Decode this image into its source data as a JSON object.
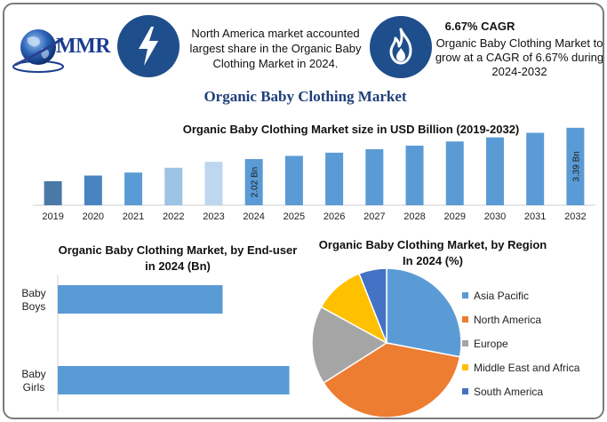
{
  "header": {
    "logo_text": "MMR",
    "fact_north_america": "North America market accounted largest share in the Organic Baby Clothing Market in 2024.",
    "cagr_title": "6.67% CAGR",
    "cagr_text": "Organic Baby Clothing Market to grow at a CAGR of 6.67% during 2024-2032",
    "icons": [
      "globe-logo-icon",
      "lightning-bolt-icon",
      "flame-icon"
    ],
    "accent_color": "#1f4e8c"
  },
  "main_title": "Organic Baby Clothing Market",
  "chart_data": [
    {
      "type": "bar",
      "title": "Organic Baby Clothing Market size in USD Billion (2019-2032)",
      "categories": [
        "2019",
        "2020",
        "2021",
        "2022",
        "2023",
        "2024",
        "2025",
        "2026",
        "2027",
        "2028",
        "2029",
        "2030",
        "2031",
        "2032"
      ],
      "values": [
        1.05,
        1.3,
        1.43,
        1.64,
        1.9,
        2.02,
        2.16,
        2.3,
        2.45,
        2.61,
        2.79,
        2.97,
        3.17,
        3.39
      ],
      "bar_colors": [
        "#4a79a8",
        "#4a84c0",
        "#5b9bd5",
        "#9dc3e6",
        "#bdd7ee",
        "#5b9bd5",
        "#5b9bd5",
        "#5b9bd5",
        "#5b9bd5",
        "#5b9bd5",
        "#5b9bd5",
        "#5b9bd5",
        "#5b9bd5",
        "#5b9bd5"
      ],
      "data_labels": {
        "2024": "2.02 Bn",
        "2032": "3.39 Bn"
      },
      "ylim": [
        0,
        3.5
      ],
      "grid": false
    },
    {
      "type": "bar",
      "orientation": "horizontal",
      "title": "Organic Baby Clothing Market, by End-user in 2024 (Bn)",
      "categories": [
        "Baby Boys",
        "Baby Girls"
      ],
      "category_lines": [
        [
          "Baby",
          "Boys"
        ],
        [
          "Baby",
          "Girls"
        ]
      ],
      "values": [
        0.84,
        1.18
      ],
      "xlim": [
        0,
        1.2
      ],
      "color": "#5b9bd5",
      "grid": false
    },
    {
      "type": "pie",
      "title": "Organic Baby Clothing Market, by Region In 2024 (%)",
      "labels": [
        "Asia Pacific",
        "North America",
        "Europe",
        "Middle East and Africa",
        "South America"
      ],
      "values": [
        28,
        38,
        17,
        11,
        6
      ],
      "colors": [
        "#5b9bd5",
        "#ed7d31",
        "#a5a5a5",
        "#ffc000",
        "#4472c4"
      ],
      "legend_position": "right"
    }
  ]
}
